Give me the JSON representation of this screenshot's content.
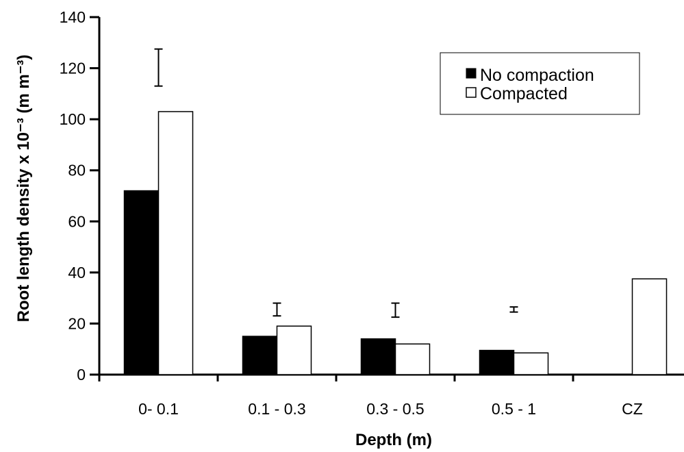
{
  "chart_data": {
    "type": "bar",
    "categories": [
      "0- 0.1",
      "0.1 - 0.3",
      "0.3 - 0.5",
      "0.5 - 1",
      "CZ"
    ],
    "series": [
      {
        "name": "No compaction",
        "color": "#000000",
        "values": [
          72,
          15,
          14,
          9.5,
          null
        ]
      },
      {
        "name": "Compacted",
        "color": "#ffffff",
        "values": [
          103,
          19,
          12,
          8.5,
          37.5
        ]
      }
    ],
    "error_bars": [
      {
        "low": 113,
        "high": 127.5
      },
      {
        "low": 23,
        "high": 28
      },
      {
        "low": 22.5,
        "high": 28
      },
      {
        "low": 24.5,
        "high": 26.5
      }
    ],
    "xlabel": "Depth (m)",
    "ylabel": "Root length density x 10⁻³ (m m⁻³)",
    "ylim": [
      0,
      140
    ],
    "yticks": [
      0,
      20,
      40,
      60,
      80,
      100,
      120,
      140
    ],
    "grid": false,
    "legend_position": "top-right"
  }
}
